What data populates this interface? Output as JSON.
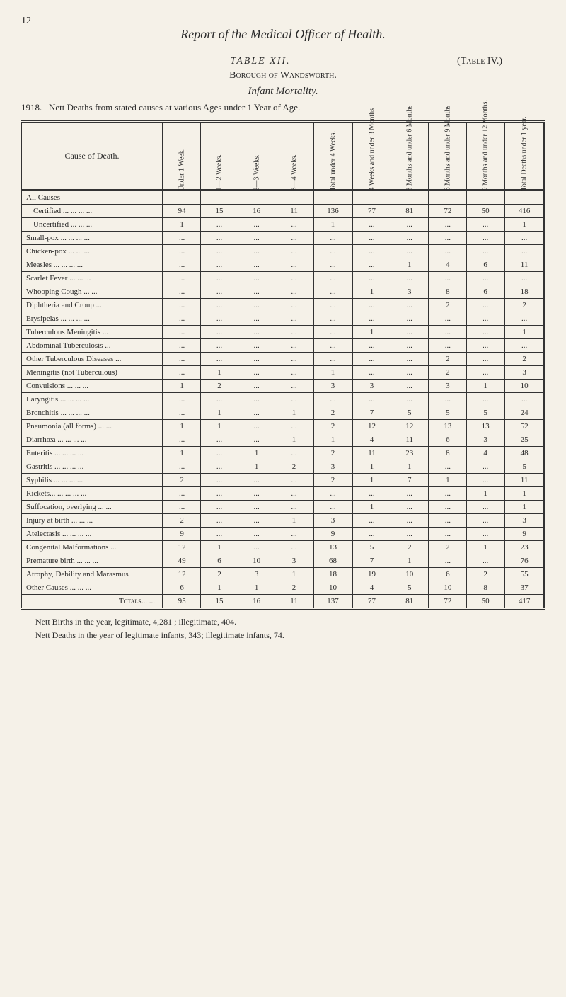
{
  "page_number": "12",
  "report_title": "Report of the Medical Officer of Health.",
  "table_number": "TABLE XII.",
  "table_ref": "(Table IV.)",
  "borough": "Borough of Wandsworth.",
  "subtitle": "Infant Mortality.",
  "year": "1918.",
  "caption": "Nett Deaths from stated causes at various Ages under 1 Year of Age.",
  "headers": {
    "cause": "Cause of Death.",
    "col1": "Under 1 Week.",
    "col2": "1—2 Weeks.",
    "col3": "2—3 Weeks.",
    "col4": "3—4 Weeks.",
    "col5": "Total under 4 Weeks.",
    "col6": "4 Weeks and under 3 Months",
    "col7": "3 Months and under 6 Months",
    "col8": "6 Months and under 9 Months",
    "col9": "9 Months and under 12 Months.",
    "col10": "Total Deaths under 1 year."
  },
  "rows": [
    {
      "label": "All Causes—",
      "vals": [
        "",
        "",
        "",
        "",
        "",
        "",
        "",
        "",
        "",
        ""
      ],
      "bold": true
    },
    {
      "label": "Certified ...  ...  ...  ...",
      "vals": [
        "94",
        "15",
        "16",
        "11",
        "136",
        "77",
        "81",
        "72",
        "50",
        "416"
      ],
      "indent": true
    },
    {
      "label": "Uncertified  ...  ...  ...",
      "vals": [
        "1",
        "...",
        "...",
        "...",
        "1",
        "...",
        "...",
        "...",
        "...",
        "1"
      ],
      "indent": true
    },
    {
      "label": "Small-pox ...  ...  ...  ...",
      "vals": [
        "...",
        "...",
        "...",
        "...",
        "...",
        "...",
        "...",
        "...",
        "...",
        "..."
      ],
      "sec": true
    },
    {
      "label": "Chicken-pox  ...  ...  ...",
      "vals": [
        "...",
        "...",
        "...",
        "...",
        "...",
        "...",
        "...",
        "...",
        "...",
        "..."
      ]
    },
    {
      "label": "Measles  ...  ...  ...  ...",
      "vals": [
        "...",
        "...",
        "...",
        "...",
        "...",
        "...",
        "1",
        "4",
        "6",
        "11"
      ]
    },
    {
      "label": "Scarlet Fever  ...  ...  ...",
      "vals": [
        "...",
        "...",
        "...",
        "...",
        "...",
        "...",
        "...",
        "...",
        "...",
        "..."
      ]
    },
    {
      "label": "Whooping Cough  ...  ...",
      "vals": [
        "...",
        "...",
        "...",
        "...",
        "...",
        "1",
        "3",
        "8",
        "6",
        "18"
      ]
    },
    {
      "label": "Diphtheria and Croup  ...",
      "vals": [
        "...",
        "...",
        "...",
        "...",
        "...",
        "...",
        "...",
        "2",
        "...",
        "2"
      ]
    },
    {
      "label": "Erysipelas ...  ...  ...  ...",
      "vals": [
        "...",
        "...",
        "...",
        "...",
        "...",
        "...",
        "...",
        "...",
        "...",
        "..."
      ]
    },
    {
      "label": "Tuberculous Meningitis  ...",
      "vals": [
        "...",
        "...",
        "...",
        "...",
        "...",
        "1",
        "...",
        "...",
        "...",
        "1"
      ]
    },
    {
      "label": "Abdominal Tuberculosis  ...",
      "vals": [
        "...",
        "...",
        "...",
        "...",
        "...",
        "...",
        "...",
        "...",
        "...",
        "..."
      ]
    },
    {
      "label": "Other Tuberculous Diseases ...",
      "vals": [
        "...",
        "...",
        "...",
        "...",
        "...",
        "...",
        "...",
        "2",
        "...",
        "2"
      ]
    },
    {
      "label": "Meningitis (not Tuberculous)",
      "vals": [
        "...",
        "1",
        "...",
        "...",
        "1",
        "...",
        "...",
        "2",
        "...",
        "3"
      ]
    },
    {
      "label": "Convulsions  ...  ...  ...",
      "vals": [
        "1",
        "2",
        "...",
        "...",
        "3",
        "3",
        "...",
        "3",
        "1",
        "10"
      ]
    },
    {
      "label": "Laryngitis ...  ...  ...  ...",
      "vals": [
        "...",
        "...",
        "...",
        "...",
        "...",
        "...",
        "...",
        "...",
        "...",
        "..."
      ]
    },
    {
      "label": "Bronchitis ...  ...  ...  ...",
      "vals": [
        "...",
        "1",
        "...",
        "1",
        "2",
        "7",
        "5",
        "5",
        "5",
        "24"
      ]
    },
    {
      "label": "Pneumonia (all forms) ...  ...",
      "vals": [
        "1",
        "1",
        "...",
        "...",
        "2",
        "12",
        "12",
        "13",
        "13",
        "52"
      ]
    },
    {
      "label": "Diarrhœa ...  ...  ...  ...",
      "vals": [
        "...",
        "...",
        "...",
        "1",
        "1",
        "4",
        "11",
        "6",
        "3",
        "25"
      ]
    },
    {
      "label": "Enteritis  ...  ...  ...  ...",
      "vals": [
        "1",
        "...",
        "1",
        "...",
        "2",
        "11",
        "23",
        "8",
        "4",
        "48"
      ]
    },
    {
      "label": "Gastritis  ...  ...  ...  ...",
      "vals": [
        "...",
        "...",
        "1",
        "2",
        "3",
        "1",
        "1",
        "...",
        "...",
        "5"
      ]
    },
    {
      "label": "Syphilis  ...  ...  ...  ...",
      "vals": [
        "2",
        "...",
        "...",
        "...",
        "2",
        "1",
        "7",
        "1",
        "...",
        "11"
      ]
    },
    {
      "label": "Rickets...  ...  ...  ...  ...",
      "vals": [
        "...",
        "...",
        "...",
        "...",
        "...",
        "...",
        "...",
        "...",
        "1",
        "1"
      ]
    },
    {
      "label": "Suffocation, overlying ...  ...",
      "vals": [
        "...",
        "...",
        "...",
        "...",
        "...",
        "1",
        "...",
        "...",
        "...",
        "1"
      ]
    },
    {
      "label": "Injury at birth  ...  ...  ...",
      "vals": [
        "2",
        "...",
        "...",
        "1",
        "3",
        "...",
        "...",
        "...",
        "...",
        "3"
      ]
    },
    {
      "label": "Atelectasis ...  ...  ...  ...",
      "vals": [
        "9",
        "...",
        "...",
        "...",
        "9",
        "...",
        "...",
        "...",
        "...",
        "9"
      ]
    },
    {
      "label": "Congenital Malformations  ...",
      "vals": [
        "12",
        "1",
        "...",
        "...",
        "13",
        "5",
        "2",
        "2",
        "1",
        "23"
      ]
    },
    {
      "label": "Premature birth ...  ...  ...",
      "vals": [
        "49",
        "6",
        "10",
        "3",
        "68",
        "7",
        "1",
        "...",
        "...",
        "76"
      ]
    },
    {
      "label": "Atrophy, Debility and Marasmus",
      "vals": [
        "12",
        "2",
        "3",
        "1",
        "18",
        "19",
        "10",
        "6",
        "2",
        "55"
      ]
    },
    {
      "label": "Other Causes  ...  ...  ...",
      "vals": [
        "6",
        "1",
        "1",
        "2",
        "10",
        "4",
        "5",
        "10",
        "8",
        "37"
      ]
    }
  ],
  "totals": {
    "label": "Totals...  ...",
    "vals": [
      "95",
      "15",
      "16",
      "11",
      "137",
      "77",
      "81",
      "72",
      "50",
      "417"
    ]
  },
  "footer": {
    "line1": "Nett Births in the year, legitimate, 4,281 ; illegitimate, 404.",
    "line2": "Nett Deaths in the year of legitimate infants, 343; illegitimate infants, 74."
  }
}
